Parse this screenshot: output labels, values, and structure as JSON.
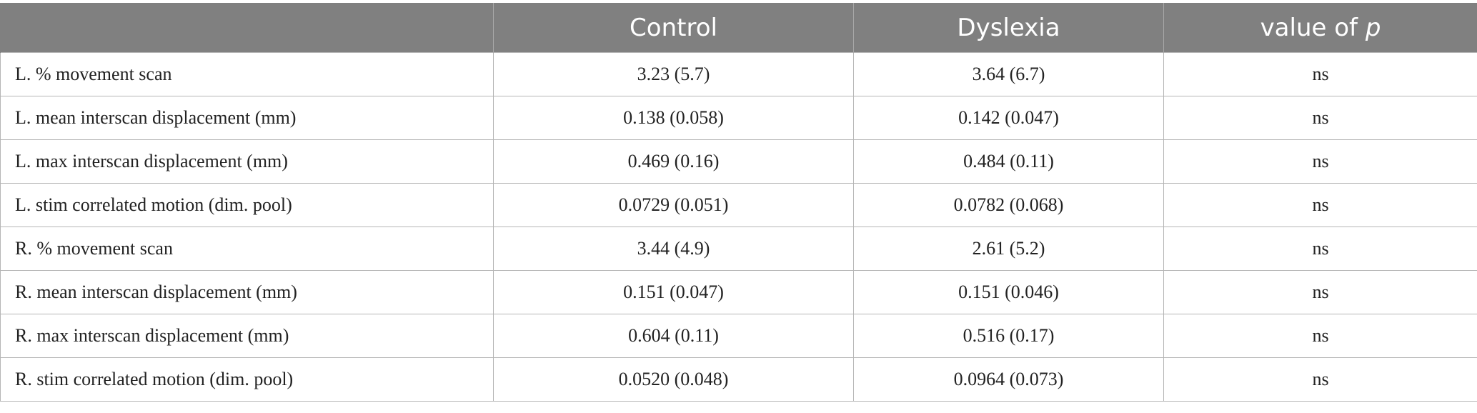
{
  "table": {
    "headers": {
      "col0": "",
      "col1": "Control",
      "col2": "Dyslexia",
      "col3_prefix": "value of ",
      "col3_italic": "p"
    },
    "rows": [
      {
        "label": "L. % movement scan",
        "control": "3.23 (5.7)",
        "dyslexia": "3.64 (6.7)",
        "p": "ns"
      },
      {
        "label": "L. mean interscan displacement (mm)",
        "control": "0.138 (0.058)",
        "dyslexia": "0.142 (0.047)",
        "p": "ns"
      },
      {
        "label": "L. max interscan displacement (mm)",
        "control": "0.469 (0.16)",
        "dyslexia": "0.484 (0.11)",
        "p": "ns"
      },
      {
        "label": "L. stim correlated motion (dim. pool)",
        "control": "0.0729 (0.051)",
        "dyslexia": "0.0782 (0.068)",
        "p": "ns"
      },
      {
        "label": "R. % movement scan",
        "control": "3.44 (4.9)",
        "dyslexia": "2.61 (5.2)",
        "p": "ns"
      },
      {
        "label": "R. mean interscan displacement (mm)",
        "control": "0.151 (0.047)",
        "dyslexia": "0.151 (0.046)",
        "p": "ns"
      },
      {
        "label": "R. max interscan displacement (mm)",
        "control": "0.604 (0.11)",
        "dyslexia": "0.516 (0.17)",
        "p": "ns"
      },
      {
        "label": "R. stim correlated motion (dim. pool)",
        "control": "0.0520 (0.048)",
        "dyslexia": "0.0964 (0.073)",
        "p": "ns"
      }
    ]
  }
}
